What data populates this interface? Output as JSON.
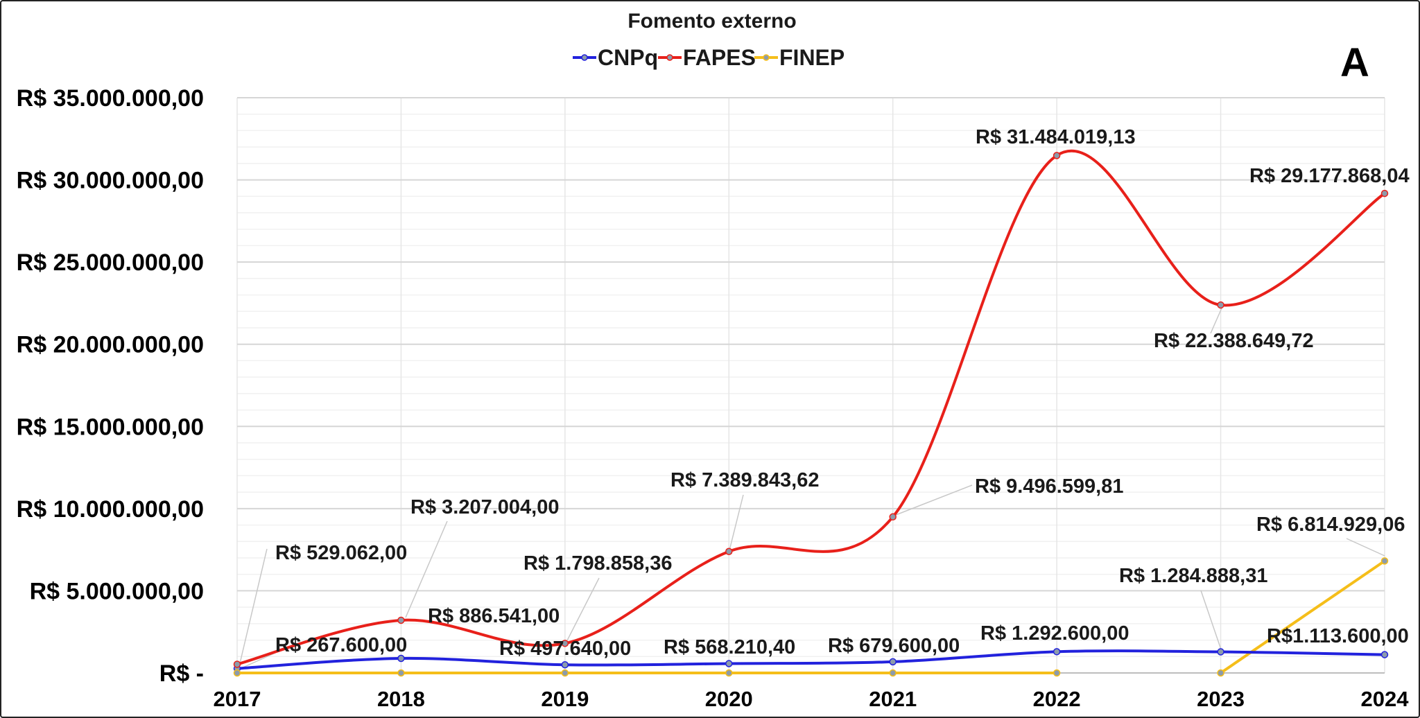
{
  "chart_data": {
    "type": "line",
    "title": "Fomento externo",
    "panel_label": "A",
    "categories": [
      "2017",
      "2018",
      "2019",
      "2020",
      "2021",
      "2022",
      "2023",
      "2024"
    ],
    "ylim": [
      0,
      35000000
    ],
    "yticks": [
      {
        "value": 0,
        "label": "R$ -"
      },
      {
        "value": 5000000,
        "label": "R$ 5.000.000,00"
      },
      {
        "value": 10000000,
        "label": "R$ 10.000.000,00"
      },
      {
        "value": 15000000,
        "label": "R$ 15.000.000,00"
      },
      {
        "value": 20000000,
        "label": "R$ 20.000.000,00"
      },
      {
        "value": 25000000,
        "label": "R$ 25.000.000,00"
      },
      {
        "value": 30000000,
        "label": "R$ 30.000.000,00"
      },
      {
        "value": 35000000,
        "label": "R$ 35.000.000,00"
      }
    ],
    "grid": true,
    "smooth": true,
    "legend_position": "top-center",
    "series": [
      {
        "name": "CNPq",
        "color": "#2222dd",
        "values": [
          267600.0,
          886541.0,
          497640.0,
          568210.4,
          679600.0,
          1292600.0,
          1284888.31,
          1113600.0
        ],
        "labels": [
          "R$ 267.600,00",
          "R$ 886.541,00",
          "R$ 497.640,00",
          "R$ 568.210,40",
          "R$ 679.600,00",
          "R$ 1.292.600,00",
          "R$ 1.284.888,31",
          "R$1.113.600,00"
        ]
      },
      {
        "name": "FAPES",
        "color": "#e8201a",
        "values": [
          529062.0,
          3207004.0,
          1798858.36,
          7389843.62,
          9496599.81,
          31484019.13,
          22388649.72,
          29177868.04
        ],
        "labels": [
          "R$ 529.062,00",
          "R$ 3.207.004,00",
          "R$ 1.798.858,36",
          "R$ 7.389.843,62",
          "R$ 9.496.599,81",
          "R$ 31.484.019,13",
          "R$ 22.388.649,72",
          "R$ 29.177.868,04"
        ]
      },
      {
        "name": "FINEP",
        "color": "#f5be1a",
        "values": [
          0,
          0,
          0,
          0,
          0,
          0,
          0,
          6814929.06
        ],
        "labels": [
          "",
          "",
          "",
          "",
          "",
          "",
          "",
          "R$ 6.814.929,06"
        ],
        "segments": [
          [
            0,
            5
          ],
          [
            6,
            7
          ]
        ]
      }
    ]
  }
}
